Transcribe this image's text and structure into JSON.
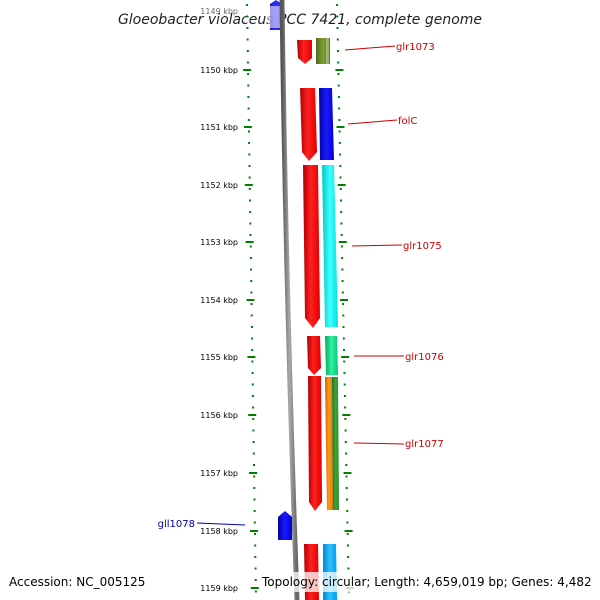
{
  "title": "Gloeobacter violaceus PCC 7421, complete genome",
  "top_partial_label": "1149 kbp",
  "scale_labels": [
    "1150 kbp",
    "1151 kbp",
    "1152 kbp",
    "1153 kbp",
    "1154 kbp",
    "1155 kbp",
    "1156 kbp",
    "1157 kbp",
    "1158 kbp",
    "1159 kbp"
  ],
  "gene_labels": {
    "glr1073": "glr1073",
    "folC": "folC",
    "glr1075": "glr1075",
    "glr1076": "glr1076",
    "glr1077": "glr1077",
    "gll1078": "gll1078"
  },
  "footer": {
    "accession": "Accession: NC_005125",
    "topology": "Topology: circular; Length: 4,659,019 bp; Genes: 4,482"
  },
  "colors": {
    "forward_strand_red": "#ff0000",
    "reverse_strand_blue": "#0000ff",
    "gene_label_forward": "#cc0000",
    "gene_label_reverse": "#0000aa",
    "scale_dots": "#008000",
    "backbone": "#888888",
    "glr1073_cog": "#6b8e23",
    "folC_cog": "#0000ff",
    "glr1075_cog": "#00ffff",
    "glr1076_cog": "#00e080",
    "glr1077_cog_a": "#ff8c00",
    "glr1077_cog_b": "#2e8b2e",
    "next_gene_cog": "#00aaff"
  }
}
